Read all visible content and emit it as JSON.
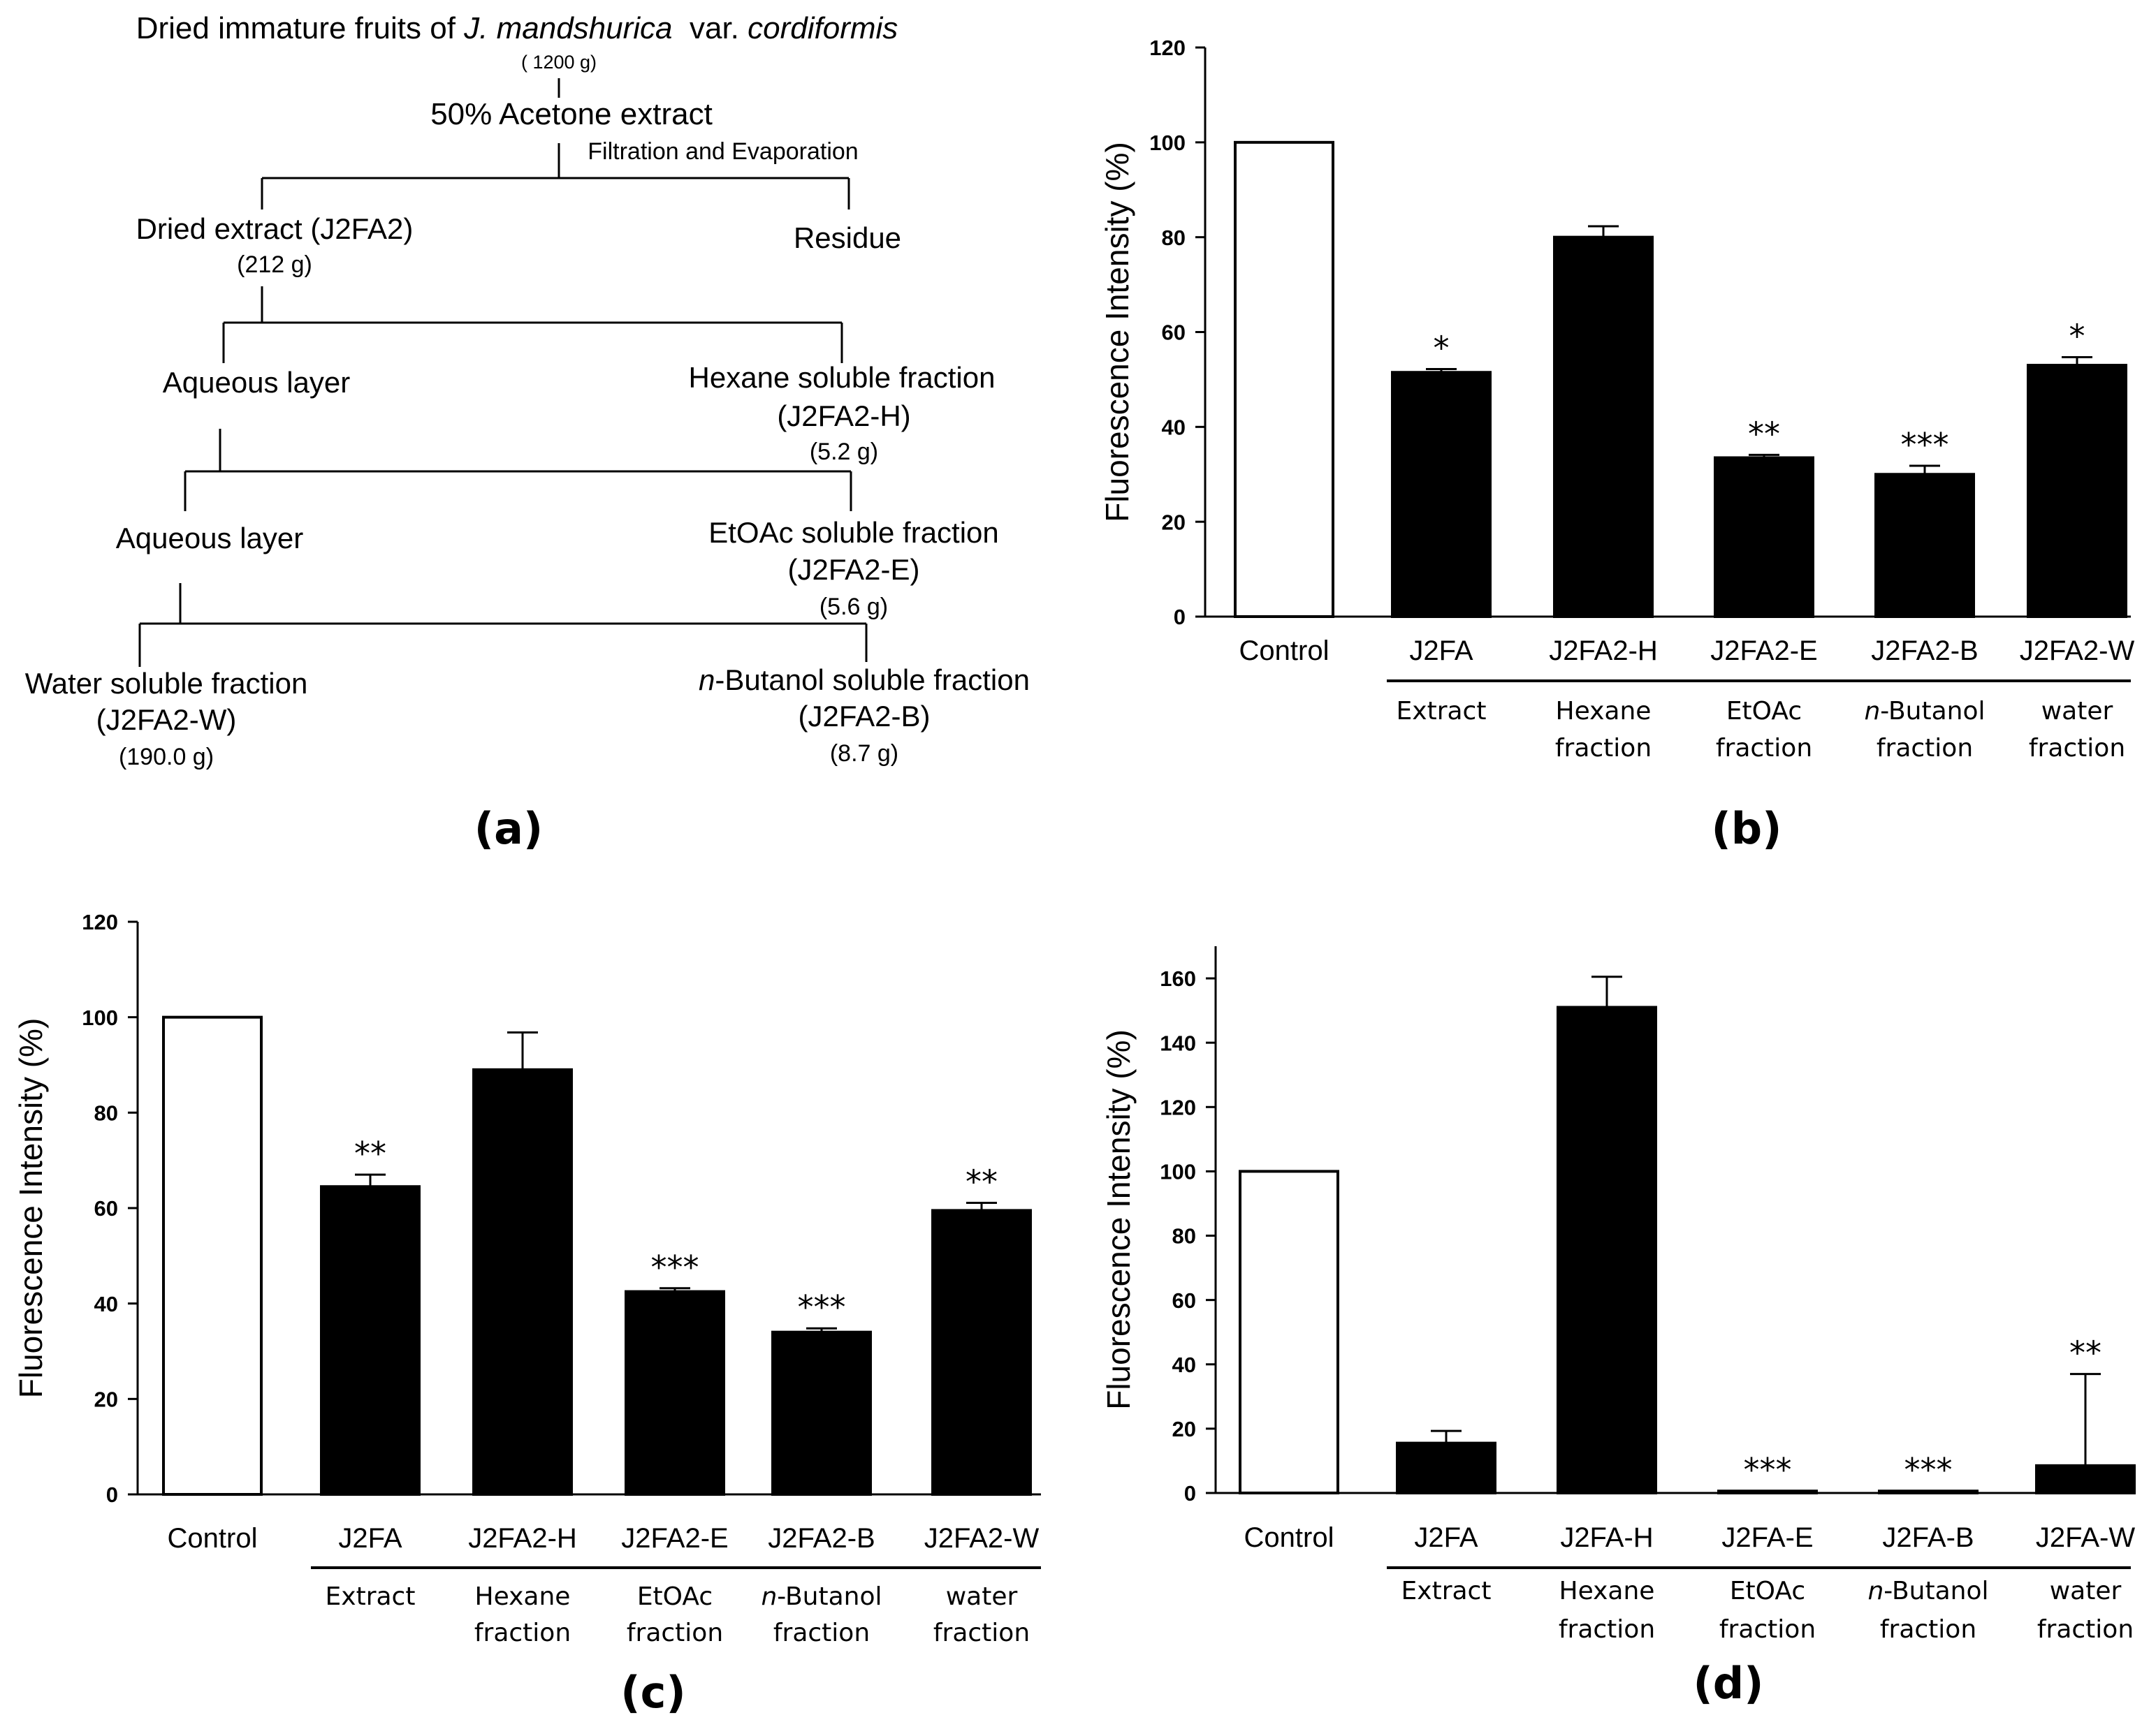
{
  "flow": {
    "title_pre": "Dried immature fruits of ",
    "title_species": "J. mandshurica",
    "title_mid": "  var. ",
    "title_variety": "cordiformis",
    "start_mass": "( 1200 g)",
    "acetone": "50% Acetone extract",
    "process": "Filtration and Evaporation",
    "dried_extract": "Dried extract (J2FA2)",
    "dried_mass": "(212 g)",
    "residue": "Residue",
    "aqueous1": "Aqueous layer",
    "hexane_name": "Hexane soluble fraction",
    "hexane_code": "(J2FA2-H)",
    "hexane_mass": "(5.2 g)",
    "aqueous2": "Aqueous layer",
    "etoac_name": "EtOAc soluble fraction",
    "etoac_code": "(J2FA2-E)",
    "etoac_mass": "(5.6 g)",
    "water_name": "Water soluble fraction",
    "water_code": "(J2FA2-W)",
    "water_mass": "(190.0 g)",
    "butanol_prefix": "n",
    "butanol_name": "-Butanol soluble fraction",
    "butanol_code": "(J2FA2-B)",
    "butanol_mass": "(8.7 g)"
  },
  "panel_labels": {
    "a": "(a)",
    "b": "(b)",
    "c": "(c)",
    "d": "(d)"
  },
  "chart_data": [
    {
      "panel": "b",
      "type": "bar",
      "ylabel": "Fluorescence  Intensity (%)",
      "ylim": [
        0,
        120
      ],
      "yticks": [
        0,
        20,
        40,
        60,
        80,
        100,
        120
      ],
      "categories": [
        "Control",
        "J2FA",
        "J2FA2-H",
        "J2FA2-E",
        "J2FA2-B",
        "J2FA2-W"
      ],
      "sublabels": [
        [],
        [
          "Extract"
        ],
        [
          "Hexane",
          "fraction"
        ],
        [
          "EtOAc",
          "fraction"
        ],
        [
          "n|-Butanol",
          "fraction"
        ],
        [
          "water",
          "fraction"
        ]
      ],
      "values": [
        100,
        51.5,
        80,
        33.5,
        30,
        53
      ],
      "errors": [
        0,
        0.7,
        2.3,
        0.6,
        1.8,
        1.7
      ],
      "fills": [
        "#ffffff",
        "#000000",
        "#000000",
        "#000000",
        "#000000",
        "#000000"
      ],
      "significance": [
        "",
        "*",
        "",
        "**",
        "***",
        "*"
      ]
    },
    {
      "panel": "c",
      "type": "bar",
      "ylabel": "Fluorescence  Intensity (%)",
      "ylim": [
        0,
        120
      ],
      "yticks": [
        0,
        20,
        40,
        60,
        80,
        100,
        120
      ],
      "categories": [
        "Control",
        "J2FA",
        "J2FA2-H",
        "J2FA2-E",
        "J2FA2-B",
        "J2FA2-W"
      ],
      "sublabels": [
        [],
        [
          "Extract"
        ],
        [
          "Hexane",
          "fraction"
        ],
        [
          "EtOAc",
          "fraction"
        ],
        [
          "n|-Butanol",
          "fraction"
        ],
        [
          "water",
          "fraction"
        ]
      ],
      "values": [
        100,
        64.5,
        89,
        42.5,
        34,
        59.5
      ],
      "errors": [
        0,
        2.5,
        7.8,
        0.7,
        0.8,
        1.6
      ],
      "fills": [
        "#ffffff",
        "#000000",
        "#000000",
        "#000000",
        "#000000",
        "#000000"
      ],
      "significance": [
        "",
        "**",
        "",
        "***",
        "***",
        "**"
      ]
    },
    {
      "panel": "d",
      "type": "bar",
      "ylabel": "Fluorescence Intensity (%)",
      "ylim": [
        0,
        170
      ],
      "yticks": [
        0,
        20,
        40,
        60,
        80,
        100,
        120,
        140,
        160
      ],
      "categories": [
        "Control",
        "J2FA",
        "J2FA-H",
        "J2FA-E",
        "J2FA-B",
        "J2FA-W"
      ],
      "sublabels": [
        [],
        [
          "Extract"
        ],
        [
          "Hexane",
          "fraction"
        ],
        [
          "EtOAc",
          "fraction"
        ],
        [
          "n|-Butanol",
          "fraction"
        ],
        [
          "water",
          "fraction"
        ]
      ],
      "values": [
        100,
        15.5,
        151,
        0.6,
        0.6,
        8.5
      ],
      "errors": [
        0,
        3.8,
        9.5,
        0,
        0,
        28.5
      ],
      "fills": [
        "#ffffff",
        "#000000",
        "#000000",
        "#000000",
        "#000000",
        "#000000"
      ],
      "significance": [
        "",
        "",
        "",
        "***",
        "***",
        "**"
      ]
    }
  ]
}
